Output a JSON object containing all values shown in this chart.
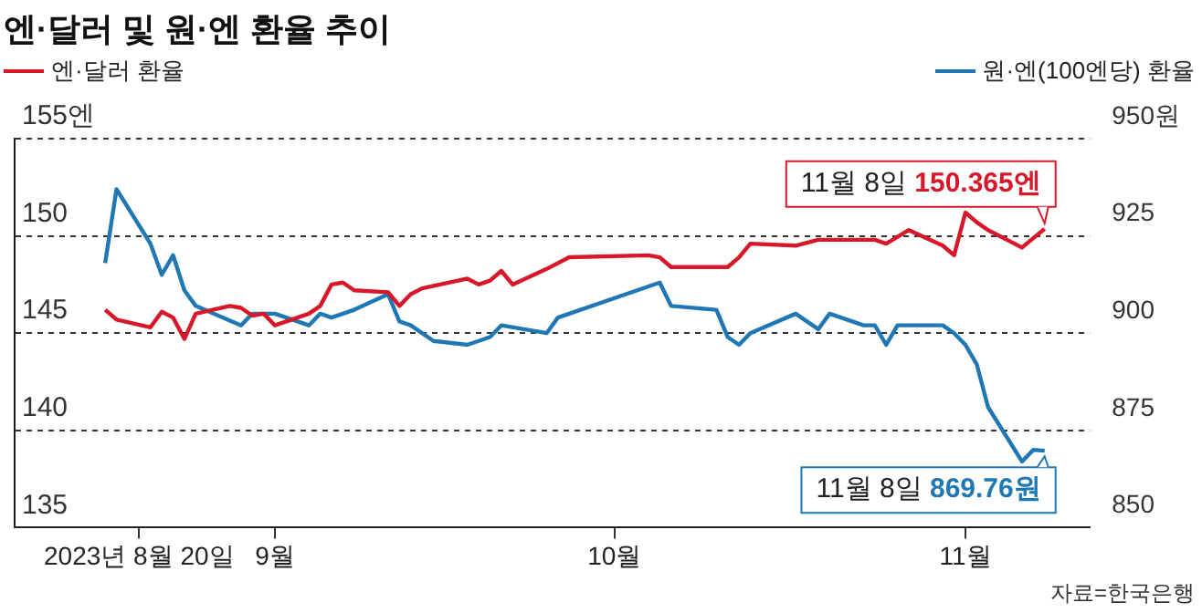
{
  "chart_data": {
    "type": "line",
    "title": "엔·달러 및 원·엔 환율 추이",
    "legend": "top",
    "grid": "y",
    "xlim": [
      "2023-08-09",
      "2023-11-12"
    ],
    "xticks": [
      {
        "value": "2023-08-20",
        "label": "2023년 8월 20일"
      },
      {
        "value": "2023-09-01",
        "label": "9월"
      },
      {
        "value": "2023-10-01",
        "label": "10월"
      },
      {
        "value": "2023-11-01",
        "label": "11월"
      }
    ],
    "ylim": [
      135,
      155
    ],
    "yticks": [
      {
        "value": 155,
        "label": "155엔"
      },
      150,
      145,
      140,
      135
    ],
    "y2lim": [
      850,
      950
    ],
    "y2ticks": [
      {
        "value": 950,
        "label": "950원"
      },
      925,
      900,
      875,
      850
    ],
    "series": [
      {
        "name": "엔·달러 환율",
        "color": "#d7182a",
        "x": [
          "2023-08-17",
          "2023-08-18",
          "2023-08-21",
          "2023-08-22",
          "2023-08-23",
          "2023-08-24",
          "2023-08-25",
          "2023-08-28",
          "2023-08-29",
          "2023-08-30",
          "2023-08-31",
          "2023-09-01",
          "2023-09-04",
          "2023-09-05",
          "2023-09-06",
          "2023-09-07",
          "2023-09-08",
          "2023-09-11",
          "2023-09-12",
          "2023-09-13",
          "2023-09-14",
          "2023-09-18",
          "2023-09-19",
          "2023-09-20",
          "2023-09-21",
          "2023-09-22",
          "2023-09-25",
          "2023-09-27",
          "2023-10-04",
          "2023-10-05",
          "2023-10-06",
          "2023-10-11",
          "2023-10-12",
          "2023-10-13",
          "2023-10-17",
          "2023-10-19",
          "2023-10-24",
          "2023-10-25",
          "2023-10-27",
          "2023-10-30",
          "2023-10-31",
          "2023-11-01",
          "2023-11-02",
          "2023-11-03",
          "2023-11-06",
          "2023-11-08"
        ],
        "values": [
          146.2,
          145.7,
          145.3,
          146.1,
          145.8,
          144.7,
          146.0,
          146.4,
          146.3,
          145.9,
          146.0,
          145.4,
          146.0,
          146.4,
          147.5,
          147.6,
          147.2,
          147.1,
          146.4,
          147.0,
          147.3,
          147.8,
          147.5,
          147.7,
          148.2,
          147.5,
          148.3,
          148.9,
          149.0,
          148.9,
          148.4,
          148.4,
          148.9,
          149.6,
          149.5,
          149.8,
          149.8,
          149.6,
          150.3,
          149.5,
          149.0,
          151.2,
          150.7,
          150.3,
          149.4,
          150.365
        ]
      },
      {
        "name": "원·엔(100엔당) 환율",
        "color": "#1f78b4",
        "axis": "y2",
        "x": [
          "2023-08-17",
          "2023-08-18",
          "2023-08-21",
          "2023-08-22",
          "2023-08-23",
          "2023-08-24",
          "2023-08-25",
          "2023-08-29",
          "2023-08-30",
          "2023-09-01",
          "2023-09-04",
          "2023-09-05",
          "2023-09-06",
          "2023-09-08",
          "2023-09-11",
          "2023-09-12",
          "2023-09-13",
          "2023-09-15",
          "2023-09-18",
          "2023-09-20",
          "2023-09-21",
          "2023-09-25",
          "2023-09-26",
          "2023-09-27",
          "2023-10-05",
          "2023-10-06",
          "2023-10-10",
          "2023-10-11",
          "2023-10-12",
          "2023-10-13",
          "2023-10-17",
          "2023-10-19",
          "2023-10-20",
          "2023-10-23",
          "2023-10-24",
          "2023-10-25",
          "2023-10-26",
          "2023-10-30",
          "2023-10-31",
          "2023-11-01",
          "2023-11-02",
          "2023-11-03",
          "2023-11-06",
          "2023-11-07",
          "2023-11-08"
        ],
        "values": [
          918,
          937,
          923,
          915,
          920,
          911,
          907,
          902,
          905,
          905,
          902,
          905,
          904,
          906,
          910,
          903,
          902,
          898,
          897,
          899,
          902,
          900,
          904,
          905,
          913,
          907,
          906,
          899,
          897,
          900,
          905,
          901,
          905,
          902,
          902,
          897,
          902,
          902,
          900,
          897,
          892,
          881,
          867,
          870,
          869.76
        ]
      }
    ],
    "annotations": [
      {
        "text": "11월 8일 150.365엔",
        "x": "2023-11-08",
        "y": 150.365
      },
      "11월 8일 869.76원",
      "자료=한국은행"
    ]
  }
}
